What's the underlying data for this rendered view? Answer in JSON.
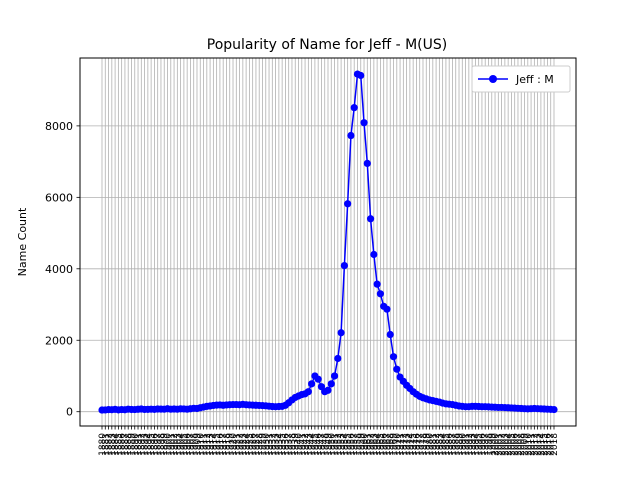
{
  "chart_data": {
    "type": "line",
    "title": "Popularity of Name for Jeff - M(US)",
    "xlabel": "",
    "ylabel": "Name Count",
    "x": [
      1880,
      1881,
      1882,
      1883,
      1884,
      1885,
      1886,
      1887,
      1888,
      1889,
      1890,
      1891,
      1892,
      1893,
      1894,
      1895,
      1896,
      1897,
      1898,
      1899,
      1900,
      1901,
      1902,
      1903,
      1904,
      1905,
      1906,
      1907,
      1908,
      1909,
      1910,
      1911,
      1912,
      1913,
      1914,
      1915,
      1916,
      1917,
      1918,
      1919,
      1920,
      1921,
      1922,
      1923,
      1924,
      1925,
      1926,
      1927,
      1928,
      1929,
      1930,
      1931,
      1932,
      1933,
      1934,
      1935,
      1936,
      1937,
      1938,
      1939,
      1940,
      1941,
      1942,
      1943,
      1944,
      1945,
      1946,
      1947,
      1948,
      1949,
      1950,
      1951,
      1952,
      1953,
      1954,
      1955,
      1956,
      1957,
      1958,
      1959,
      1960,
      1961,
      1962,
      1963,
      1964,
      1965,
      1966,
      1967,
      1968,
      1969,
      1970,
      1971,
      1972,
      1973,
      1974,
      1975,
      1976,
      1977,
      1978,
      1979,
      1980,
      1981,
      1982,
      1983,
      1984,
      1985,
      1986,
      1987,
      1988,
      1989,
      1990,
      1991,
      1992,
      1993,
      1994,
      1995,
      1996,
      1997,
      1998,
      1999,
      2000,
      2001,
      2002,
      2003,
      2004,
      2005,
      2006,
      2007,
      2008,
      2009,
      2010,
      2011,
      2012,
      2013,
      2014,
      2015,
      2016,
      2017,
      2018
    ],
    "series": [
      {
        "name": "Jeff : M",
        "color": "#0000ff",
        "marker": "circle",
        "values": [
          47,
          50,
          58,
          56,
          65,
          52,
          60,
          55,
          70,
          62,
          60,
          68,
          75,
          64,
          66,
          70,
          66,
          75,
          72,
          70,
          82,
          70,
          75,
          70,
          80,
          78,
          70,
          82,
          95,
          90,
          110,
          130,
          150,
          160,
          175,
          185,
          190,
          180,
          190,
          195,
          200,
          200,
          195,
          205,
          195,
          190,
          185,
          180,
          175,
          170,
          165,
          155,
          145,
          140,
          145,
          150,
          180,
          250,
          330,
          400,
          440,
          480,
          500,
          560,
          780,
          1000,
          910,
          700,
          560,
          600,
          780,
          1000,
          1490,
          2210,
          4090,
          5820,
          7730,
          8510,
          9450,
          9410,
          8090,
          6950,
          5400,
          4400,
          3570,
          3300,
          2950,
          2870,
          2160,
          1540,
          1190,
          970,
          850,
          740,
          650,
          560,
          490,
          430,
          390,
          360,
          330,
          310,
          290,
          270,
          240,
          220,
          210,
          200,
          180,
          160,
          150,
          140,
          140,
          150,
          150,
          145,
          140,
          140,
          135,
          130,
          125,
          120,
          120,
          115,
          110,
          105,
          100,
          95,
          90,
          85,
          80,
          85,
          90,
          85,
          80,
          75,
          70,
          65,
          60
        ]
      }
    ],
    "ylim": [
      0,
      9500
    ],
    "yticks": [
      0,
      2000,
      4000,
      6000,
      8000
    ],
    "grid": true,
    "legend": "top-right"
  }
}
